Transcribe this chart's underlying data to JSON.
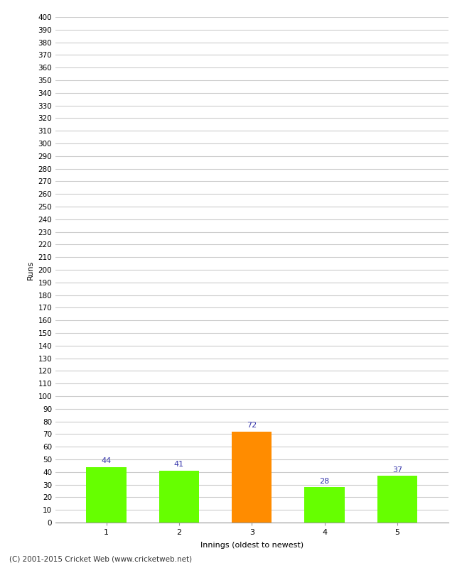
{
  "xlabel": "Innings (oldest to newest)",
  "ylabel": "Runs",
  "categories": [
    "1",
    "2",
    "3",
    "4",
    "5"
  ],
  "values": [
    44,
    41,
    72,
    28,
    37
  ],
  "bar_colors": [
    "#66ff00",
    "#66ff00",
    "#ff8c00",
    "#66ff00",
    "#66ff00"
  ],
  "value_label_color": "#3333aa",
  "ylim": [
    0,
    400
  ],
  "ytick_step": 10,
  "background_color": "#ffffff",
  "grid_color": "#cccccc",
  "footer": "(C) 2001-2015 Cricket Web (www.cricketweb.net)"
}
